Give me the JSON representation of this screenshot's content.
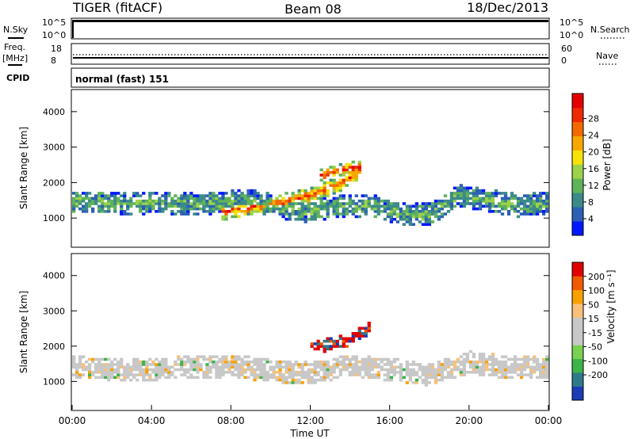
{
  "header": {
    "station": "TIGER (fitACF)",
    "beam": "Beam 08",
    "date": "18/Dec/2013"
  },
  "noise_panel": {
    "left_label": "N.Sky",
    "right_label": "N.Search",
    "left_ticks": [
      "10^5",
      "10^0"
    ],
    "right_ticks": [
      "10^5",
      "10^0"
    ],
    "trace_color": "#000000"
  },
  "freq_panel": {
    "left_label_line1": "Freq.",
    "left_label_line2": "[MHz]",
    "right_label": "Nave",
    "left_ticks": [
      "18",
      "8"
    ],
    "right_ticks": [
      "60",
      "0"
    ]
  },
  "cpid_panel": {
    "label": "CPID",
    "value": "normal (fast) 151"
  },
  "chart_data": [
    {
      "type": "heatmap",
      "name": "power",
      "ylabel": "Slant Range [km]",
      "yticks": [
        "1000",
        "2000",
        "3000",
        "4000"
      ],
      "ylim": [
        200,
        4600
      ],
      "xlim": [
        0,
        24
      ],
      "colorbar": {
        "label": "Power [dB]",
        "ticks": [
          "4",
          "8",
          "12",
          "16",
          "20",
          "24",
          "28"
        ],
        "colors": [
          "#0018ff",
          "#2c5fb6",
          "#3c8a8a",
          "#5fb35a",
          "#9bd24a",
          "#f6e20a",
          "#f6a800",
          "#f26a00",
          "#ee2a00",
          "#e50000"
        ]
      },
      "bands": [
        {
          "t": [
            0.0,
            1.5,
            3.0,
            4.5,
            6.0,
            7.5,
            9.0,
            10.5,
            12.0,
            13.5,
            15.0,
            16.5,
            18.0,
            19.5,
            21.0,
            22.5,
            24.0
          ],
          "r": [
            1450,
            1450,
            1400,
            1450,
            1400,
            1450,
            1500,
            1300,
            1200,
            1350,
            1350,
            1150,
            1100,
            1650,
            1500,
            1350,
            1450
          ],
          "w": 320,
          "level": 0.35
        },
        {
          "t": [
            7.5,
            9.0,
            10.5,
            12.0,
            13.5,
            14.5
          ],
          "r": [
            1150,
            1300,
            1450,
            1650,
            1950,
            2350
          ],
          "w": 220,
          "level": 0.8
        },
        {
          "t": [
            12.5,
            13.5,
            14.5
          ],
          "r": [
            2200,
            2350,
            2450
          ],
          "w": 170,
          "level": 0.9
        }
      ]
    },
    {
      "type": "heatmap",
      "name": "velocity",
      "ylabel": "Slant Range [km]",
      "yticks": [
        "1000",
        "2000",
        "3000",
        "4000"
      ],
      "ylim": [
        200,
        4600
      ],
      "xlim": [
        0,
        24
      ],
      "xticks": [
        "00:00",
        "04:00",
        "08:00",
        "12:00",
        "16:00",
        "20:00",
        "00:00"
      ],
      "xlabel": "Time UT",
      "colorbar": {
        "label": "Velocity [m s⁻¹]",
        "ticks": [
          "200",
          "100",
          "50",
          "15",
          "-15",
          "-50",
          "-100",
          "-200"
        ],
        "colors": [
          "#1a3cb4",
          "#2e7a8a",
          "#3cb44a",
          "#7ad050",
          "#c8c8c8",
          "#c8c8c8",
          "#f8c07a",
          "#f8a000",
          "#f05a00",
          "#e00000"
        ]
      },
      "bands": [
        {
          "t": [
            0.0,
            2.0,
            4.0,
            6.0,
            8.0,
            10.0,
            12.0,
            14.0,
            16.0,
            18.0,
            20.0,
            22.0,
            24.0
          ],
          "r": [
            1400,
            1350,
            1350,
            1400,
            1450,
            1300,
            1250,
            1450,
            1350,
            1200,
            1550,
            1400,
            1400
          ],
          "w": 320,
          "level": 0.5
        },
        {
          "t": [
            12.0,
            13.0,
            14.0,
            15.0
          ],
          "r": [
            1950,
            2050,
            2200,
            2500
          ],
          "w": 180,
          "level": 0.95
        }
      ]
    }
  ]
}
